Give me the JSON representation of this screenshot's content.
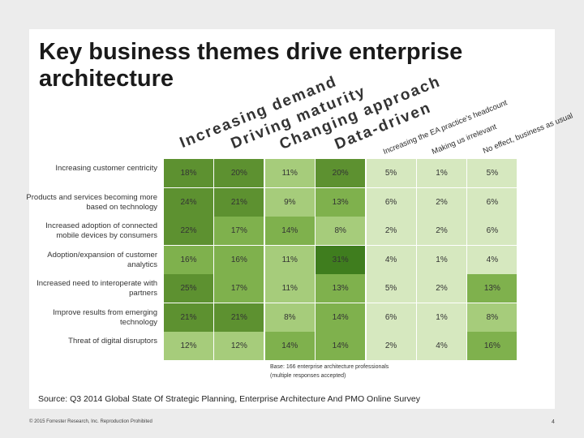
{
  "title": "Key business themes drive enterprise architecture",
  "colors": {
    "dark": "#5d9130",
    "mid": "#7fb14d",
    "light": "#a6cc7b",
    "pale": "#d6e8bf",
    "darkest": "#3f7d1e"
  },
  "chart_data": {
    "type": "table",
    "columns": [
      "Increasing demand",
      "Driving maturity",
      "Changing approach",
      "Data-driven",
      "Increasing the EA practice's headcount",
      "Making us irrelevant",
      "No effect, business as usual"
    ],
    "rows": [
      {
        "label": "Increasing customer centricity",
        "values": [
          "18%",
          "20%",
          "11%",
          "20%",
          "5%",
          "1%",
          "5%"
        ]
      },
      {
        "label": "Products and services becoming more based on technology",
        "values": [
          "24%",
          "21%",
          "9%",
          "13%",
          "6%",
          "2%",
          "6%"
        ]
      },
      {
        "label": "Increased adoption of connected mobile devices by consumers",
        "values": [
          "22%",
          "17%",
          "14%",
          "8%",
          "2%",
          "2%",
          "6%"
        ]
      },
      {
        "label": "Adoption/expansion of customer analytics",
        "values": [
          "16%",
          "16%",
          "11%",
          "31%",
          "4%",
          "1%",
          "4%"
        ]
      },
      {
        "label": "Increased need to interoperate with partners",
        "values": [
          "25%",
          "17%",
          "11%",
          "13%",
          "5%",
          "2%",
          "13%"
        ]
      },
      {
        "label": "Improve results from emerging technology",
        "values": [
          "21%",
          "21%",
          "8%",
          "14%",
          "6%",
          "1%",
          "8%"
        ]
      },
      {
        "label": "Threat of digital disruptors",
        "values": [
          "12%",
          "12%",
          "14%",
          "14%",
          "2%",
          "4%",
          "16%"
        ]
      }
    ],
    "note": "Base: 166 enterprise architecture professionals (multiple responses accepted)"
  },
  "source": "Source: Q3 2014 Global State Of Strategic Planning, Enterprise Architecture And PMO Online Survey",
  "footer": "© 2015 Forrester Research, Inc. Reproduction Prohibited",
  "page_number": "4"
}
